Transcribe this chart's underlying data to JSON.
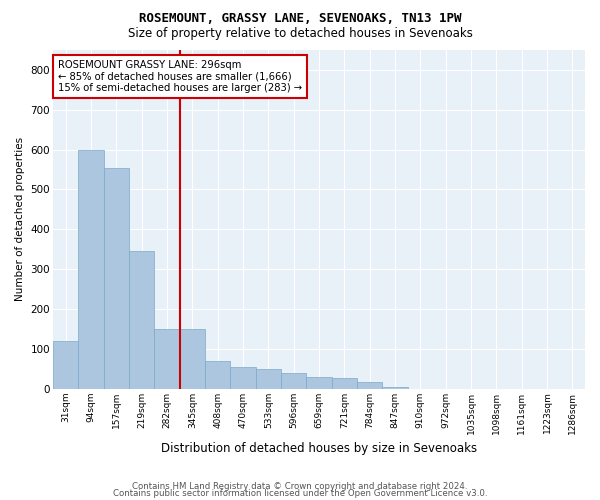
{
  "title1": "ROSEMOUNT, GRASSY LANE, SEVENOAKS, TN13 1PW",
  "title2": "Size of property relative to detached houses in Sevenoaks",
  "xlabel": "Distribution of detached houses by size in Sevenoaks",
  "ylabel": "Number of detached properties",
  "bin_labels": [
    "31sqm",
    "94sqm",
    "157sqm",
    "219sqm",
    "282sqm",
    "345sqm",
    "408sqm",
    "470sqm",
    "533sqm",
    "596sqm",
    "659sqm",
    "721sqm",
    "784sqm",
    "847sqm",
    "910sqm",
    "972sqm",
    "1035sqm",
    "1098sqm",
    "1161sqm",
    "1223sqm",
    "1286sqm"
  ],
  "bar_heights": [
    120,
    600,
    555,
    345,
    150,
    150,
    70,
    55,
    50,
    40,
    30,
    28,
    18,
    5,
    0,
    0,
    0,
    0,
    0,
    0,
    0
  ],
  "bar_color": "#adc6e0",
  "bar_edge_color": "#7aaac8",
  "property_line_x": 4.5,
  "property_line_color": "#cc0000",
  "annotation_text": "ROSEMOUNT GRASSY LANE: 296sqm\n← 85% of detached houses are smaller (1,666)\n15% of semi-detached houses are larger (283) →",
  "annotation_box_color": "#cc0000",
  "ylim": [
    0,
    850
  ],
  "yticks": [
    0,
    100,
    200,
    300,
    400,
    500,
    600,
    700,
    800
  ],
  "footer1": "Contains HM Land Registry data © Crown copyright and database right 2024.",
  "footer2": "Contains public sector information licensed under the Open Government Licence v3.0.",
  "bg_color": "#e8f0f8",
  "grid_color": "#ffffff"
}
